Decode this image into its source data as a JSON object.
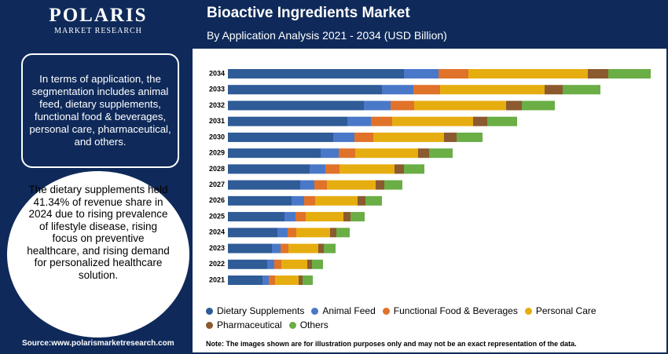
{
  "brand": {
    "name": "POLARIS",
    "tagline": "MARKET RESEARCH"
  },
  "summary": "In terms of application, the segmentation includes animal feed, dietary supplements, functional food & beverages, personal care, pharmaceutical, and others.",
  "highlight": "The dietary supplements held 41.34% of revenue share in 2024 due to rising prevalence of lifestyle disease, rising focus on preventive healthcare, and rising demand for personalized healthcare solution.",
  "source": "Source:www.polarismarketresearch.com",
  "note": "Note: The images shown are for illustration purposes only and may not be an exact representation of the data.",
  "chart_data": {
    "type": "stacked-barh",
    "title": "Bioactive Ingredients Market",
    "subtitle": "By Application Analysis 2021 - 2034 (USD Billion)",
    "categories": [
      "2034",
      "2033",
      "2032",
      "2031",
      "2030",
      "2029",
      "2028",
      "2027",
      "2026",
      "2025",
      "2024",
      "2023",
      "2022",
      "2021"
    ],
    "series": [
      {
        "name": "Dietary Supplements",
        "color": "#2f5b97",
        "values": [
          224,
          196,
          173,
          152,
          134,
          118,
          104,
          92,
          81,
          72,
          63,
          56,
          50,
          44
        ]
      },
      {
        "name": "Animal Feed",
        "color": "#4a78c8",
        "values": [
          44,
          40,
          34,
          30,
          27,
          23,
          20,
          18,
          16,
          14,
          13,
          11,
          9,
          8
        ]
      },
      {
        "name": "Functional Food & Beverages",
        "color": "#e0722a",
        "values": [
          38,
          34,
          30,
          27,
          24,
          21,
          18,
          16,
          14,
          13,
          11,
          10,
          9,
          8
        ]
      },
      {
        "name": "Personal Care",
        "color": "#e6ad10",
        "values": [
          152,
          133,
          117,
          103,
          90,
          80,
          70,
          62,
          54,
          48,
          43,
          38,
          33,
          30
        ]
      },
      {
        "name": "Pharmaceutical",
        "color": "#8b5a2f",
        "values": [
          26,
          23,
          20,
          18,
          16,
          14,
          12,
          11,
          10,
          9,
          8,
          7,
          6,
          5
        ]
      },
      {
        "name": "Others",
        "color": "#6aae45",
        "values": [
          54,
          48,
          42,
          38,
          33,
          30,
          26,
          23,
          21,
          18,
          17,
          15,
          14,
          13
        ]
      }
    ]
  }
}
